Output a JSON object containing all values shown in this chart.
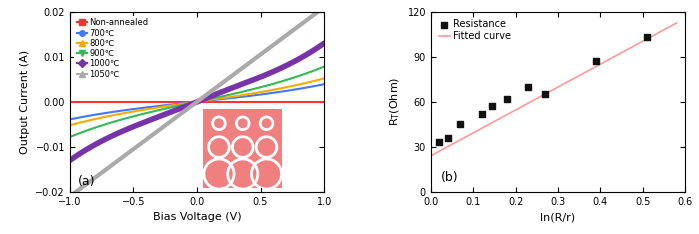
{
  "panel_a": {
    "title": "(a)",
    "xlabel": "Bias Voltage (V)",
    "ylabel": "Output Current (A)",
    "xlim": [
      -1.0,
      1.0
    ],
    "ylim": [
      -0.02,
      0.02
    ],
    "xticks": [
      -1.0,
      -0.5,
      0.0,
      0.5,
      1.0
    ],
    "yticks": [
      -0.02,
      -0.01,
      0.0,
      0.01,
      0.02
    ],
    "lines": [
      {
        "label": "Non-annealed",
        "color": "#FF3333",
        "slope": 0.0,
        "lw": 1.5,
        "marker": "s"
      },
      {
        "label": "700℃",
        "color": "#4477FF",
        "slope": 0.003,
        "lw": 1.5,
        "marker": "o"
      },
      {
        "label": "800℃",
        "color": "#FFAA00",
        "slope": 0.004,
        "lw": 1.5,
        "marker": "^"
      },
      {
        "label": "900℃",
        "color": "#33BB55",
        "slope": 0.006,
        "lw": 1.5,
        "marker": "v"
      },
      {
        "label": "1000℃",
        "color": "#7733AA",
        "slope": 0.012,
        "lw": 4.0,
        "marker": "D"
      },
      {
        "label": "1050℃",
        "color": "#AAAAAA",
        "slope": 0.021,
        "lw": 3.0,
        "marker": "^"
      }
    ],
    "inset": {
      "bg_color": "#F08080",
      "bounds": [
        0.37,
        0.02,
        0.62,
        0.44
      ],
      "rows": [
        0.82,
        0.52,
        0.18
      ],
      "cols": [
        0.2,
        0.5,
        0.8
      ],
      "radii": [
        0.08,
        0.13,
        0.19
      ],
      "circle_color": "white",
      "circle_lw": 2.0
    }
  },
  "panel_b": {
    "title": "(b)",
    "xlabel": "ln(R/r)",
    "ylabel": "R$_\\mathrm{T}$(Ohm)",
    "xlim": [
      0.0,
      0.6
    ],
    "ylim": [
      0,
      120
    ],
    "xticks": [
      0.0,
      0.1,
      0.2,
      0.3,
      0.4,
      0.5,
      0.6
    ],
    "yticks": [
      0,
      30,
      60,
      90,
      120
    ],
    "data_x": [
      0.02,
      0.04,
      0.07,
      0.12,
      0.145,
      0.18,
      0.23,
      0.27,
      0.39,
      0.51
    ],
    "data_y": [
      33,
      36,
      45,
      52,
      57,
      62,
      70,
      65,
      87,
      103
    ],
    "fit_x": [
      -0.01,
      0.58
    ],
    "fit_y": [
      22.5,
      112.5
    ],
    "fit_color": "#FF9999",
    "marker_color": "#111111",
    "marker_size": 5
  }
}
